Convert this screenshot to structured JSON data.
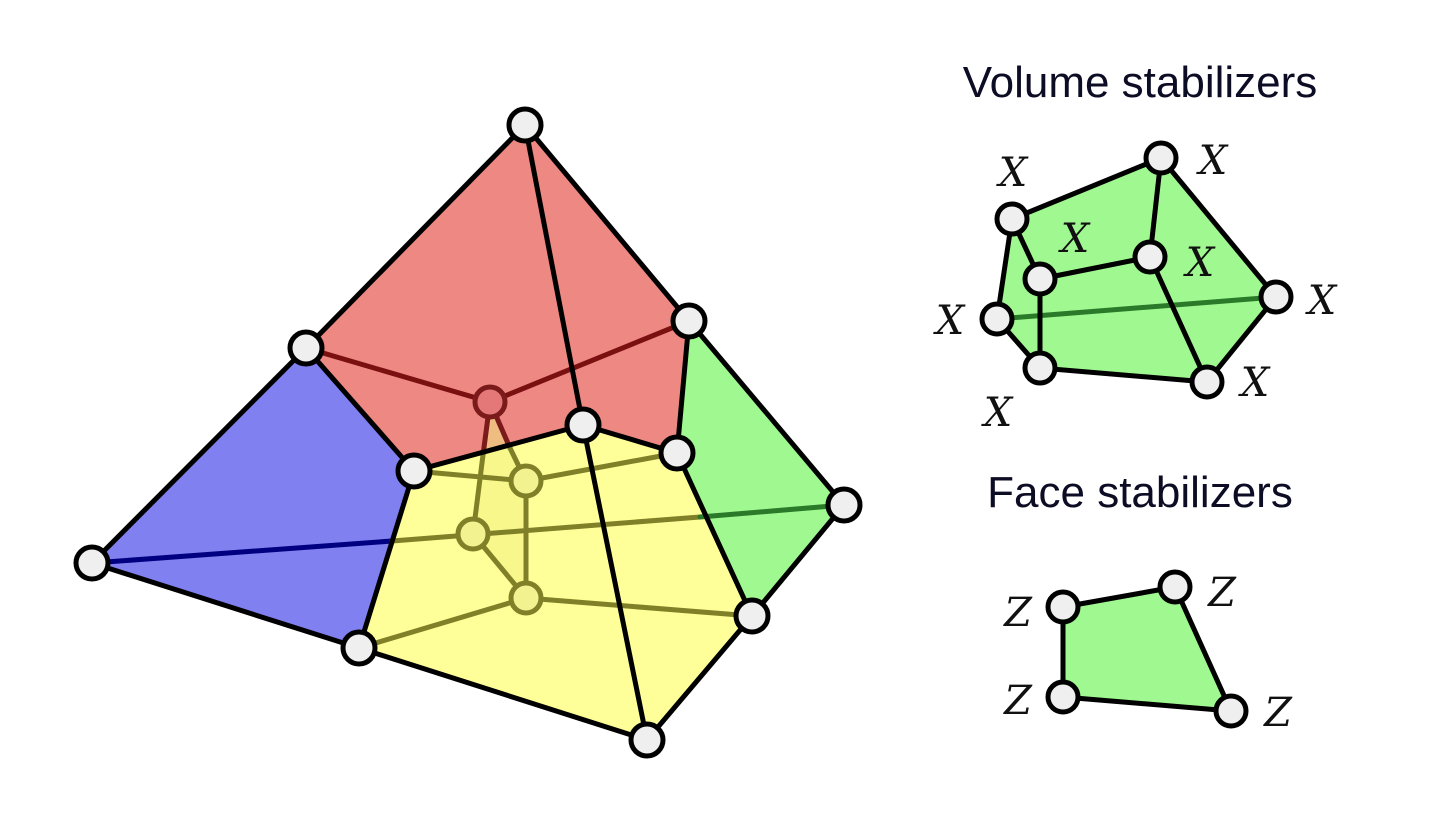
{
  "volume_title": "Volume stabilizers",
  "face_title": "Face stabilizers",
  "volume_labels": [
    "X",
    "X",
    "X",
    "X",
    "X",
    "X",
    "X",
    "X"
  ],
  "face_labels": [
    "Z",
    "Z",
    "Z",
    "Z"
  ],
  "colors": {
    "red_cell": "#ee8883",
    "blue_cell": "#8080f0",
    "green_cell": "#a0f890",
    "yellow_cell": "#ffff99",
    "node": "#efefef"
  }
}
